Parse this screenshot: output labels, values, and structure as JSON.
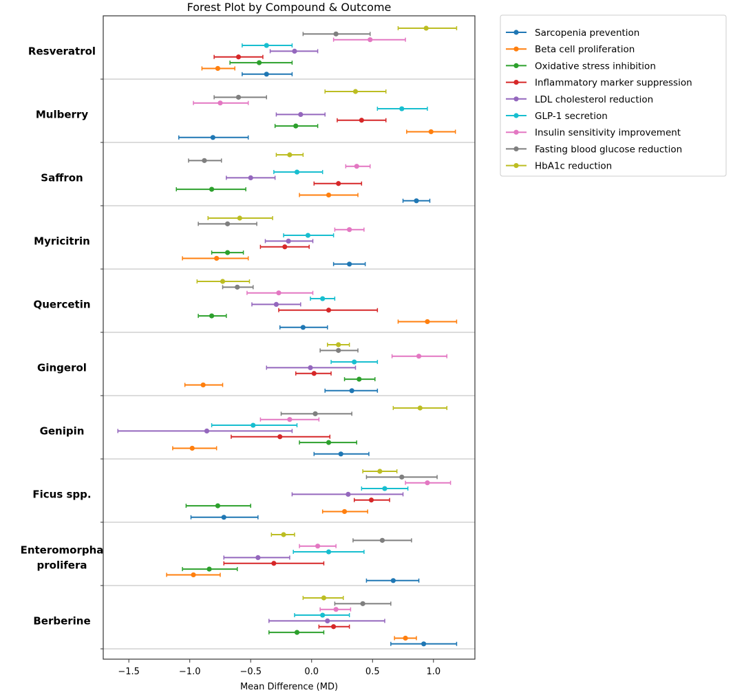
{
  "chart_data": {
    "type": "forest",
    "title": "Forest Plot by Compound & Outcome",
    "xlabel": "Mean Difference (MD)",
    "ylabel": "",
    "xlim": [
      -1.71,
      1.34
    ],
    "xticks": [
      -1.5,
      -1.0,
      -0.5,
      0.0,
      0.5,
      1.0
    ],
    "xtick_labels": [
      "−1.5",
      "−1.0",
      "−0.5",
      "0.0",
      "0.5",
      "1.0"
    ],
    "legend_position": "outside-top-right",
    "series": [
      {
        "name": "Sarcopenia prevention",
        "color": "#1f77b4"
      },
      {
        "name": "Beta cell proliferation",
        "color": "#ff7f0e"
      },
      {
        "name": "Oxidative stress inhibition",
        "color": "#2ca02c"
      },
      {
        "name": "Inflammatory marker suppression",
        "color": "#d62728"
      },
      {
        "name": "LDL cholesterol reduction",
        "color": "#9467bd"
      },
      {
        "name": "GLP-1 secretion",
        "color": "#17becf"
      },
      {
        "name": "Insulin sensitivity improvement",
        "color": "#e377c2"
      },
      {
        "name": "Fasting blood glucose reduction",
        "color": "#7f7f7f"
      },
      {
        "name": "HbA1c reduction",
        "color": "#bcbd22"
      }
    ],
    "value_format": "[mean, ci_low, ci_high] per series, in legend order",
    "compounds": [
      {
        "name": "Resveratrol",
        "values": [
          [
            -0.37,
            -0.57,
            -0.16
          ],
          [
            -0.77,
            -0.9,
            -0.63
          ],
          [
            -0.43,
            -0.67,
            -0.16
          ],
          [
            -0.6,
            -0.8,
            -0.4
          ],
          [
            -0.14,
            -0.34,
            0.05
          ],
          [
            -0.37,
            -0.57,
            -0.16
          ],
          [
            0.48,
            0.18,
            0.77
          ],
          [
            0.2,
            -0.07,
            0.48
          ],
          [
            0.94,
            0.71,
            1.19
          ]
        ]
      },
      {
        "name": "Mulberry",
        "values": [
          [
            -0.81,
            -1.09,
            -0.52
          ],
          [
            0.98,
            0.78,
            1.18
          ],
          [
            -0.13,
            -0.3,
            0.05
          ],
          [
            0.41,
            0.21,
            0.61
          ],
          [
            -0.09,
            -0.29,
            0.11
          ],
          [
            0.74,
            0.54,
            0.95
          ],
          [
            -0.75,
            -0.97,
            -0.52
          ],
          [
            -0.6,
            -0.8,
            -0.37
          ],
          [
            0.36,
            0.11,
            0.61
          ]
        ]
      },
      {
        "name": "Saffron",
        "values": [
          [
            0.86,
            0.75,
            0.97
          ],
          [
            0.14,
            -0.1,
            0.38
          ],
          [
            -0.82,
            -1.11,
            -0.54
          ],
          [
            0.22,
            0.02,
            0.41
          ],
          [
            -0.5,
            -0.7,
            -0.3
          ],
          [
            -0.12,
            -0.31,
            0.09
          ],
          [
            0.37,
            0.28,
            0.48
          ],
          [
            -0.88,
            -1.01,
            -0.74
          ],
          [
            -0.18,
            -0.29,
            -0.07
          ]
        ]
      },
      {
        "name": "Myricitrin",
        "values": [
          [
            0.31,
            0.18,
            0.44
          ],
          [
            -0.78,
            -1.06,
            -0.52
          ],
          [
            -0.69,
            -0.82,
            -0.56
          ],
          [
            -0.22,
            -0.42,
            -0.02
          ],
          [
            -0.19,
            -0.38,
            0.01
          ],
          [
            -0.03,
            -0.23,
            0.18
          ],
          [
            0.31,
            0.19,
            0.43
          ],
          [
            -0.69,
            -0.93,
            -0.45
          ],
          [
            -0.59,
            -0.85,
            -0.32
          ]
        ]
      },
      {
        "name": "Quercetin",
        "values": [
          [
            -0.07,
            -0.26,
            0.13
          ],
          [
            0.95,
            0.71,
            1.19
          ],
          [
            -0.82,
            -0.93,
            -0.7
          ],
          [
            0.14,
            -0.27,
            0.54
          ],
          [
            -0.29,
            -0.49,
            -0.09
          ],
          [
            0.09,
            -0.01,
            0.19
          ],
          [
            -0.27,
            -0.53,
            0.01
          ],
          [
            -0.61,
            -0.73,
            -0.48
          ],
          [
            -0.73,
            -0.94,
            -0.51
          ]
        ]
      },
      {
        "name": "Gingerol",
        "values": [
          [
            0.33,
            0.11,
            0.54
          ],
          [
            -0.89,
            -1.04,
            -0.73
          ],
          [
            0.39,
            0.27,
            0.52
          ],
          [
            0.02,
            -0.13,
            0.16
          ],
          [
            -0.01,
            -0.37,
            0.36
          ],
          [
            0.35,
            0.16,
            0.54
          ],
          [
            0.88,
            0.66,
            1.11
          ],
          [
            0.22,
            0.07,
            0.38
          ],
          [
            0.22,
            0.13,
            0.31
          ]
        ]
      },
      {
        "name": "Genipin",
        "values": [
          [
            0.24,
            0.02,
            0.47
          ],
          [
            -0.98,
            -1.14,
            -0.78
          ],
          [
            0.14,
            -0.1,
            0.37
          ],
          [
            -0.26,
            -0.66,
            0.15
          ],
          [
            -0.86,
            -1.59,
            -0.16
          ],
          [
            -0.48,
            -0.82,
            -0.12
          ],
          [
            -0.18,
            -0.42,
            0.06
          ],
          [
            0.03,
            -0.25,
            0.33
          ],
          [
            0.89,
            0.67,
            1.11
          ]
        ]
      },
      {
        "name": "Ficus spp.",
        "values": [
          [
            -0.72,
            -0.99,
            -0.44
          ],
          [
            0.27,
            0.09,
            0.46
          ],
          [
            -0.77,
            -1.03,
            -0.5
          ],
          [
            0.49,
            0.35,
            0.64
          ],
          [
            0.3,
            -0.16,
            0.75
          ],
          [
            0.6,
            0.41,
            0.79
          ],
          [
            0.95,
            0.77,
            1.14
          ],
          [
            0.74,
            0.45,
            1.03
          ],
          [
            0.56,
            0.42,
            0.7
          ]
        ]
      },
      {
        "name": "Enteromorpha\nprolifera",
        "values": [
          [
            0.67,
            0.45,
            0.88
          ],
          [
            -0.97,
            -1.19,
            -0.75
          ],
          [
            -0.84,
            -1.06,
            -0.61
          ],
          [
            -0.31,
            -0.72,
            0.1
          ],
          [
            -0.44,
            -0.72,
            -0.18
          ],
          [
            0.14,
            -0.15,
            0.43
          ],
          [
            0.05,
            -0.1,
            0.2
          ],
          [
            0.58,
            0.34,
            0.82
          ],
          [
            -0.23,
            -0.33,
            -0.14
          ]
        ]
      },
      {
        "name": "Berberine",
        "values": [
          [
            0.92,
            0.65,
            1.19
          ],
          [
            0.77,
            0.68,
            0.86
          ],
          [
            -0.12,
            -0.35,
            0.1
          ],
          [
            0.18,
            0.06,
            0.31
          ],
          [
            0.13,
            -0.35,
            0.6
          ],
          [
            0.09,
            -0.14,
            0.31
          ],
          [
            0.2,
            0.07,
            0.32
          ],
          [
            0.42,
            0.19,
            0.65
          ],
          [
            0.1,
            -0.07,
            0.26
          ]
        ]
      }
    ]
  }
}
